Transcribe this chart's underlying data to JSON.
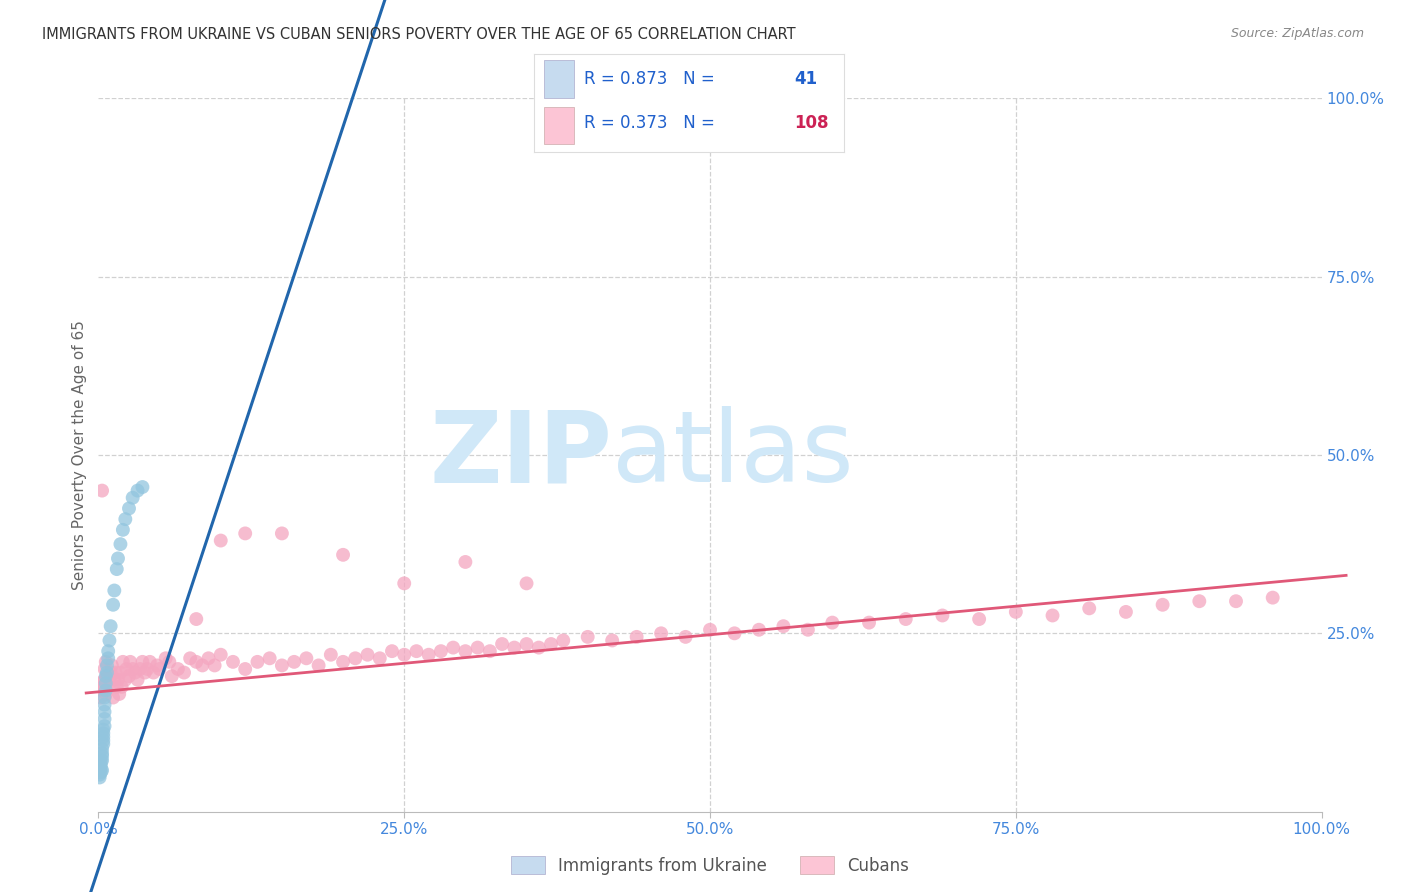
{
  "title": "IMMIGRANTS FROM UKRAINE VS CUBAN SENIORS POVERTY OVER THE AGE OF 65 CORRELATION CHART",
  "source": "Source: ZipAtlas.com",
  "ylabel": "Seniors Poverty Over the Age of 65",
  "xlim": [
    0.0,
    1.0
  ],
  "ylim": [
    0.0,
    1.0
  ],
  "ukraine_R": 0.873,
  "ukraine_N": 41,
  "cuban_R": 0.373,
  "cuban_N": 108,
  "ukraine_scatter_color": "#92c5de",
  "cuban_scatter_color": "#f4a6c0",
  "ukraine_line_color": "#2166ac",
  "cuban_line_color": "#e05878",
  "legend_box_ukraine_fill": "#c6dbef",
  "legend_box_cuban_fill": "#fcc5d5",
  "legend_text_color": "#2060cc",
  "watermark_zip": "ZIP",
  "watermark_atlas": "atlas",
  "watermark_color": "#d0e8f8",
  "background_color": "#ffffff",
  "grid_color": "#cccccc",
  "tick_color": "#4488dd",
  "title_color": "#333333",
  "source_color": "#888888",
  "ylabel_color": "#666666",
  "ukraine_line_intercept": -0.08,
  "ukraine_line_slope": 5.2,
  "cuban_line_intercept": 0.168,
  "cuban_line_slope": 0.16,
  "ukraine_x": [
    0.001,
    0.001,
    0.002,
    0.002,
    0.002,
    0.002,
    0.003,
    0.003,
    0.003,
    0.003,
    0.003,
    0.004,
    0.004,
    0.004,
    0.004,
    0.004,
    0.005,
    0.005,
    0.005,
    0.005,
    0.005,
    0.006,
    0.006,
    0.006,
    0.007,
    0.007,
    0.008,
    0.008,
    0.009,
    0.01,
    0.012,
    0.013,
    0.015,
    0.016,
    0.018,
    0.02,
    0.022,
    0.025,
    0.028,
    0.032,
    0.036
  ],
  "ukraine_y": [
    0.048,
    0.052,
    0.055,
    0.06,
    0.065,
    0.07,
    0.058,
    0.072,
    0.078,
    0.082,
    0.088,
    0.095,
    0.1,
    0.105,
    0.11,
    0.115,
    0.12,
    0.13,
    0.14,
    0.15,
    0.16,
    0.17,
    0.18,
    0.19,
    0.195,
    0.205,
    0.215,
    0.225,
    0.24,
    0.26,
    0.29,
    0.31,
    0.34,
    0.355,
    0.375,
    0.395,
    0.41,
    0.425,
    0.44,
    0.45,
    0.455
  ],
  "cuban_x": [
    0.001,
    0.002,
    0.003,
    0.003,
    0.004,
    0.005,
    0.005,
    0.006,
    0.006,
    0.007,
    0.008,
    0.009,
    0.01,
    0.011,
    0.012,
    0.013,
    0.014,
    0.015,
    0.016,
    0.017,
    0.018,
    0.019,
    0.02,
    0.022,
    0.023,
    0.025,
    0.026,
    0.028,
    0.03,
    0.032,
    0.034,
    0.036,
    0.038,
    0.04,
    0.042,
    0.045,
    0.048,
    0.05,
    0.055,
    0.058,
    0.06,
    0.065,
    0.07,
    0.075,
    0.08,
    0.085,
    0.09,
    0.095,
    0.1,
    0.11,
    0.12,
    0.13,
    0.14,
    0.15,
    0.16,
    0.17,
    0.18,
    0.19,
    0.2,
    0.21,
    0.22,
    0.23,
    0.24,
    0.25,
    0.26,
    0.27,
    0.28,
    0.29,
    0.3,
    0.31,
    0.32,
    0.33,
    0.34,
    0.35,
    0.36,
    0.37,
    0.38,
    0.4,
    0.42,
    0.44,
    0.46,
    0.48,
    0.5,
    0.52,
    0.54,
    0.56,
    0.58,
    0.6,
    0.63,
    0.66,
    0.69,
    0.72,
    0.75,
    0.78,
    0.81,
    0.84,
    0.87,
    0.9,
    0.93,
    0.96,
    0.1,
    0.15,
    0.2,
    0.25,
    0.3,
    0.35,
    0.08,
    0.12
  ],
  "cuban_y": [
    0.18,
    0.16,
    0.17,
    0.45,
    0.175,
    0.185,
    0.2,
    0.165,
    0.21,
    0.19,
    0.175,
    0.185,
    0.195,
    0.205,
    0.16,
    0.185,
    0.195,
    0.175,
    0.185,
    0.165,
    0.195,
    0.175,
    0.21,
    0.185,
    0.2,
    0.19,
    0.21,
    0.2,
    0.195,
    0.185,
    0.2,
    0.21,
    0.195,
    0.2,
    0.21,
    0.195,
    0.205,
    0.2,
    0.215,
    0.21,
    0.19,
    0.2,
    0.195,
    0.215,
    0.21,
    0.205,
    0.215,
    0.205,
    0.22,
    0.21,
    0.2,
    0.21,
    0.215,
    0.205,
    0.21,
    0.215,
    0.205,
    0.22,
    0.21,
    0.215,
    0.22,
    0.215,
    0.225,
    0.22,
    0.225,
    0.22,
    0.225,
    0.23,
    0.225,
    0.23,
    0.225,
    0.235,
    0.23,
    0.235,
    0.23,
    0.235,
    0.24,
    0.245,
    0.24,
    0.245,
    0.25,
    0.245,
    0.255,
    0.25,
    0.255,
    0.26,
    0.255,
    0.265,
    0.265,
    0.27,
    0.275,
    0.27,
    0.28,
    0.275,
    0.285,
    0.28,
    0.29,
    0.295,
    0.295,
    0.3,
    0.38,
    0.39,
    0.36,
    0.32,
    0.35,
    0.32,
    0.27,
    0.39
  ]
}
